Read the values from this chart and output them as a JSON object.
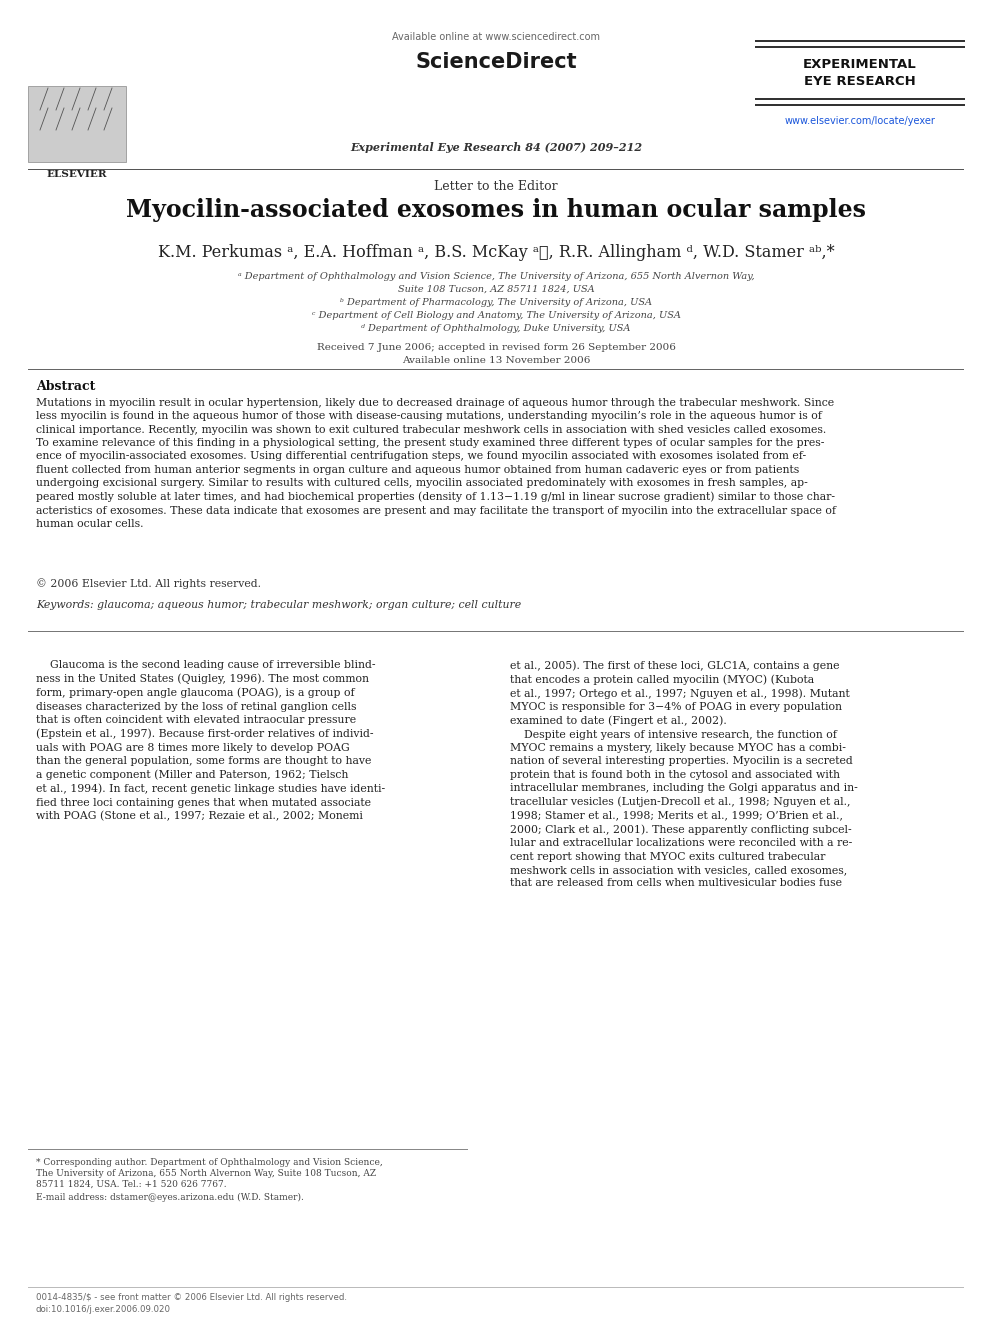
{
  "bg": "#ffffff",
  "header_available": "Available online at www.sciencedirect.com",
  "header_sd": "ScienceDirect",
  "header_journal": "Experimental Eye Research 84 (2007) 209–212",
  "header_elsevier": "ELSEVIER",
  "header_eer": "EXPERIMENTAL\nEYE RESEARCH",
  "header_url": "www.elsevier.com/locate/yexer",
  "letter_to_editor": "Letter to the Editor",
  "title": "Myocilin-associated exosomes in human ocular samples",
  "authors_line": "K.M. Perkumas ᵃ, E.A. Hoffman ᵃ, B.S. McKay ᵃⲜ, R.R. Allingham ᵈ, W.D. Stamer ᵃᵇ,*",
  "aff1": "ᵃ Department of Ophthalmology and Vision Science, The University of Arizona, 655 North Alvernon Way,",
  "aff1b": "Suite 108 Tucson, AZ 85711 1824, USA",
  "aff2": "ᵇ Department of Pharmacology, The University of Arizona, USA",
  "aff3": "ᶜ Department of Cell Biology and Anatomy, The University of Arizona, USA",
  "aff4": "ᵈ Department of Ophthalmology, Duke University, USA",
  "dates": "Received 7 June 2006; accepted in revised form 26 September 2006\nAvailable online 13 November 2006",
  "abstract_heading": "Abstract",
  "abstract_body": "Mutations in myocilin result in ocular hypertension, likely due to decreased drainage of aqueous humor through the trabecular meshwork. Since\nless myocilin is found in the aqueous humor of those with disease-causing mutations, understanding myocilin’s role in the aqueous humor is of\nclinical importance. Recently, myocilin was shown to exit cultured trabecular meshwork cells in association with shed vesicles called exosomes.\nTo examine relevance of this finding in a physiological setting, the present study examined three different types of ocular samples for the pres-\nence of myocilin-associated exosomes. Using differential centrifugation steps, we found myocilin associated with exosomes isolated from ef-\nfluent collected from human anterior segments in organ culture and aqueous humor obtained from human cadaveric eyes or from patients\nundergoing excisional surgery. Similar to results with cultured cells, myocilin associated predominately with exosomes in fresh samples, ap-\npeared mostly soluble at later times, and had biochemical properties (density of 1.13−1.19 g/ml in linear sucrose gradient) similar to those char-\nacteristics of exosomes. These data indicate that exosomes are present and may facilitate the transport of myocilin into the extracellular space of\nhuman ocular cells.",
  "copyright_text": "© 2006 Elsevier Ltd. All rights reserved.",
  "keywords_text": "Keywords: glaucoma; aqueous humor; trabecular meshwork; organ culture; cell culture",
  "body_left": "    Glaucoma is the second leading cause of irreversible blind-\nness in the United States (Quigley, 1996). The most common\nform, primary-open angle glaucoma (POAG), is a group of\ndiseases characterized by the loss of retinal ganglion cells\nthat is often coincident with elevated intraocular pressure\n(Epstein et al., 1997). Because first-order relatives of individ-\nuals with POAG are 8 times more likely to develop POAG\nthan the general population, some forms are thought to have\na genetic component (Miller and Paterson, 1962; Tielsch\net al., 1994). In fact, recent genetic linkage studies have identi-\nfied three loci containing genes that when mutated associate\nwith POAG (Stone et al., 1997; Rezaie et al., 2002; Monemi",
  "body_right": "et al., 2005). The first of these loci, GLC1A, contains a gene\nthat encodes a protein called myocilin (MYOC) (Kubota\net al., 1997; Ortego et al., 1997; Nguyen et al., 1998). Mutant\nMYOC is responsible for 3−4% of POAG in every population\nexamined to date (Fingert et al., 2002).\n    Despite eight years of intensive research, the function of\nMYOC remains a mystery, likely because MYOC has a combi-\nnation of several interesting properties. Myocilin is a secreted\nprotein that is found both in the cytosol and associated with\nintracellular membranes, including the Golgi apparatus and in-\ntracellular vesicles (Lutjen-Drecoll et al., 1998; Nguyen et al.,\n1998; Stamer et al., 1998; Merits et al., 1999; O’Brien et al.,\n2000; Clark et al., 2001). These apparently conflicting subcel-\nlular and extracellular localizations were reconciled with a re-\ncent report showing that MYOC exits cultured trabecular\nmeshwork cells in association with vesicles, called exosomes,\nthat are released from cells when multivesicular bodies fuse",
  "footnote1": "* Corresponding author. Department of Ophthalmology and Vision Science,",
  "footnote2": "The University of Arizona, 655 North Alvernon Way, Suite 108 Tucson, AZ",
  "footnote3": "85711 1824, USA. Tel.: +1 520 626 7767.",
  "footnote4": "E-mail address: dstamer@eyes.arizona.edu (W.D. Stamer).",
  "footer": "0014-4835/$ - see front matter © 2006 Elsevier Ltd. All rights reserved.\ndoi:10.1016/j.exer.2006.09.020"
}
